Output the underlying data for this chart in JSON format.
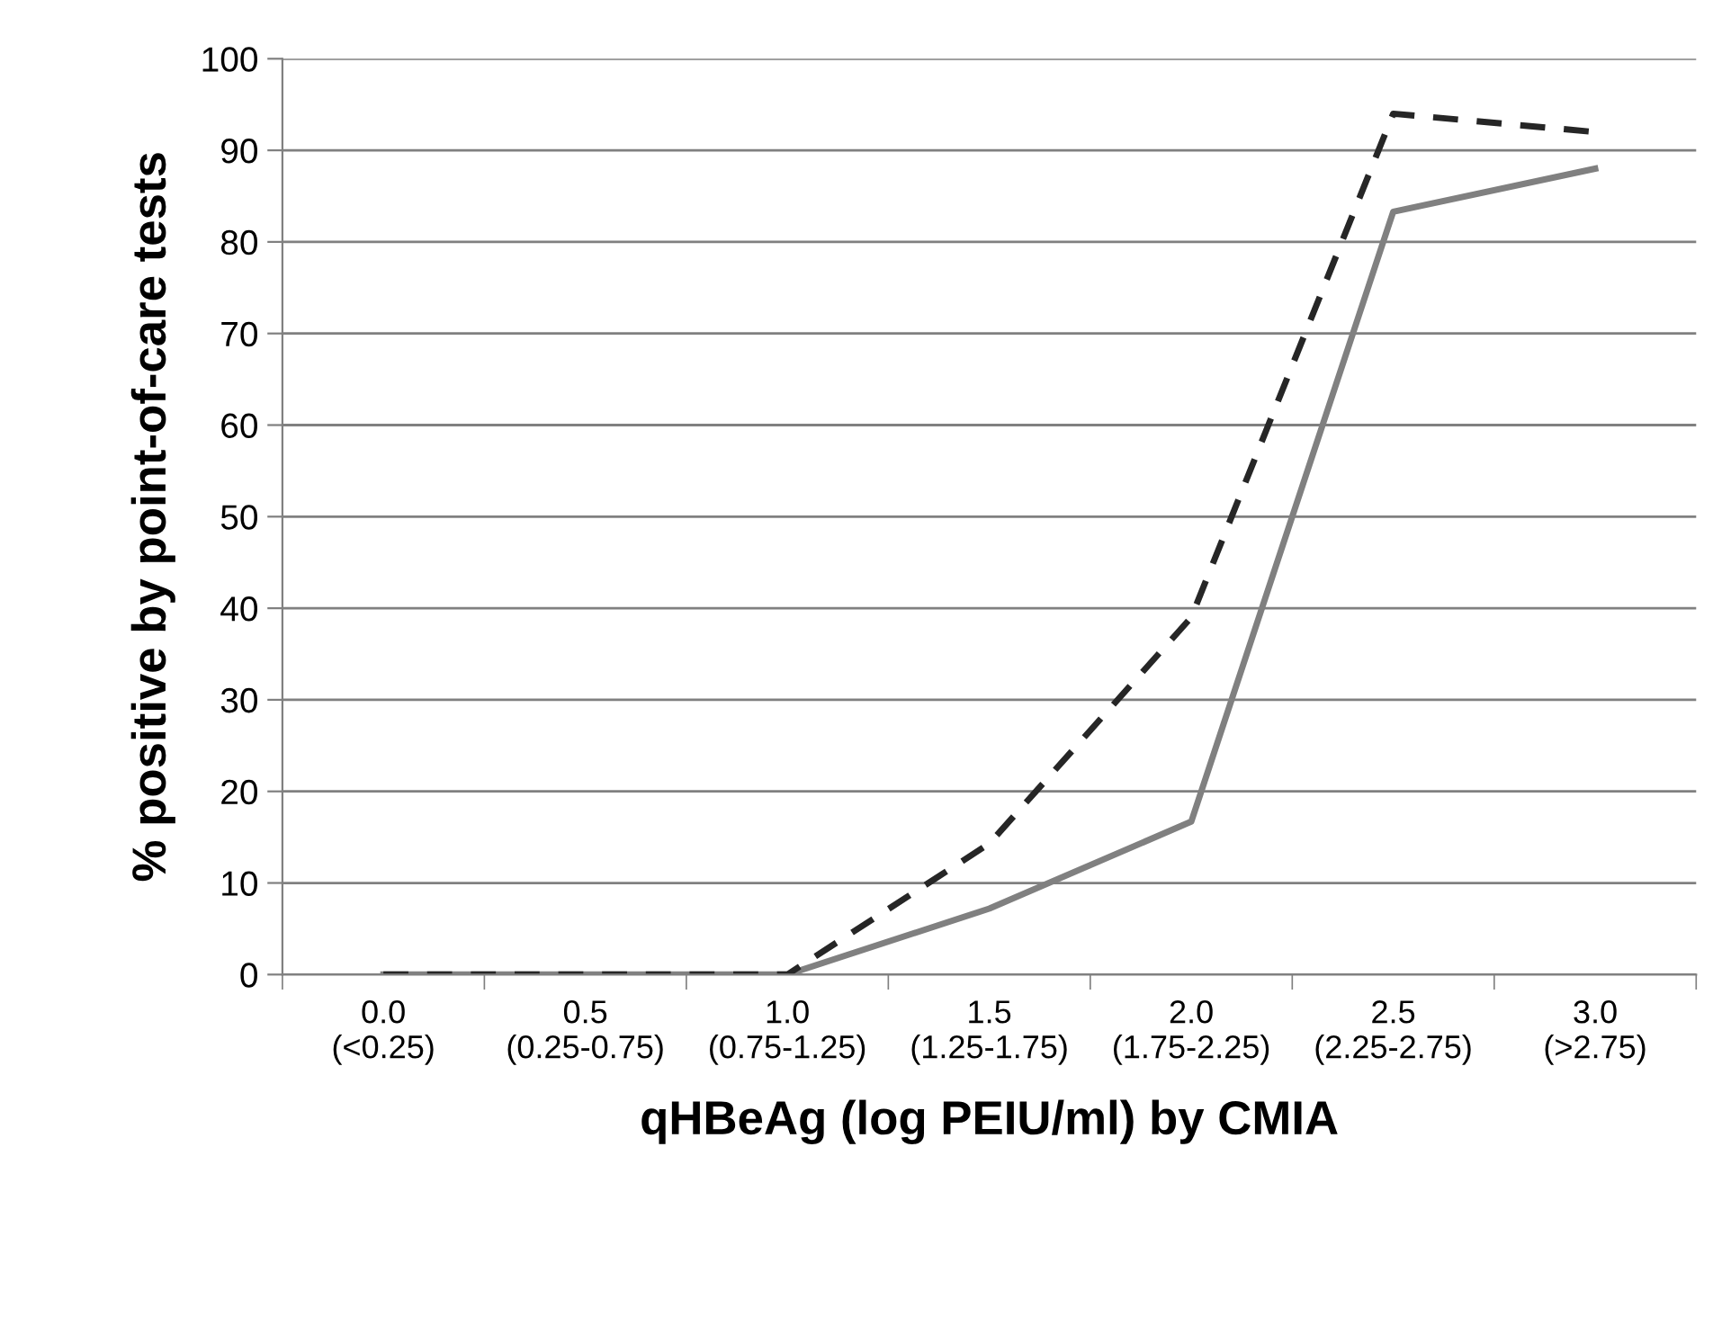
{
  "chart_data": {
    "type": "line",
    "xlabel": "qHBeAg (log PEIU/ml) by CMIA",
    "ylabel": "% positive by point-of-care tests",
    "categories": [
      "0.0\n(<0.25)",
      "0.5\n(0.25-0.75)",
      "1.0\n(0.75-1.25)",
      "1.5\n(1.25-1.75)",
      "2.0\n(1.75-2.25)",
      "2.5\n(2.25-2.75)",
      "3.0\n(>2.75)"
    ],
    "series": [
      {
        "color": "#808080",
        "line_style": "solid",
        "values": [
          0,
          0,
          0,
          7.2,
          16.7,
          83.3,
          88
        ]
      },
      {
        "color": "#262626",
        "line_style": "dashed",
        "values": [
          0,
          0,
          0,
          14.3,
          39,
          94,
          92
        ]
      }
    ],
    "ylim": [
      0,
      100
    ],
    "yticks": [
      0,
      10,
      20,
      30,
      40,
      50,
      60,
      70,
      80,
      90,
      100
    ],
    "grid": "y",
    "marker": "none"
  }
}
